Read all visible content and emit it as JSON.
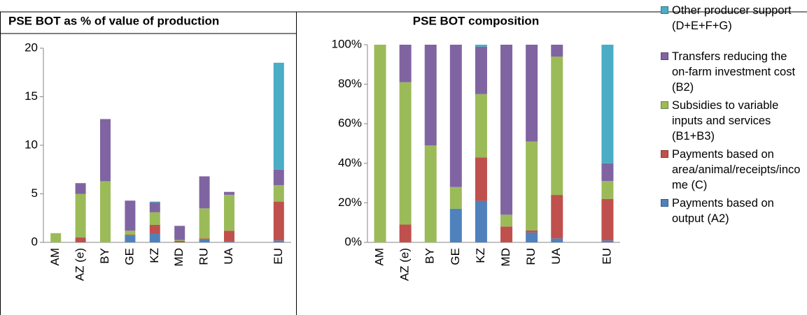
{
  "chart_data": [
    {
      "type": "stacked_bar",
      "title": "PSE BOT as % of value of production",
      "categories": [
        "AM",
        "AZ (e)",
        "BY",
        "GE",
        "KZ",
        "MD",
        "RU",
        "UA",
        null,
        "EU"
      ],
      "ylim": [
        0,
        20
      ],
      "yticks": [
        0,
        5,
        10,
        15,
        20
      ],
      "grid": false,
      "series": [
        {
          "name": "Payments based on output (A2)",
          "color": "#4f81bd",
          "values": [
            0,
            0,
            0,
            0.7,
            0.9,
            0,
            0.3,
            0.1,
            null,
            0.2
          ]
        },
        {
          "name": "Payments based on area/animal/receipts/income (C)",
          "color": "#c0504d",
          "values": [
            0,
            0.5,
            0,
            0.1,
            0.9,
            0.15,
            0.1,
            1.1,
            null,
            4.0
          ]
        },
        {
          "name": "Subsidies to variable inputs and services (B1+B3)",
          "color": "#9bbb59",
          "values": [
            0.95,
            4.5,
            6.3,
            0.4,
            1.3,
            0.1,
            3.1,
            3.7,
            null,
            1.7
          ]
        },
        {
          "name": "Transfers reducing the on-farm investment cost (B2)",
          "color": "#8064a2",
          "values": [
            0,
            1.1,
            6.4,
            3.1,
            1.0,
            1.45,
            3.3,
            0.3,
            null,
            1.6
          ]
        },
        {
          "name": "Other producer support (D+E+F+G)",
          "color": "#4bacc6",
          "values": [
            0,
            0,
            0,
            0,
            0.1,
            0,
            0,
            0,
            null,
            11.0
          ]
        }
      ]
    },
    {
      "type": "stacked_bar",
      "title": "PSE BOT composition",
      "categories": [
        "AM",
        "AZ (e)",
        "BY",
        "GE",
        "KZ",
        "MD",
        "RU",
        "UA",
        null,
        "EU"
      ],
      "ylim": [
        0,
        100
      ],
      "yticks": [
        {
          "value": 0,
          "label": "0%"
        },
        {
          "value": 20,
          "label": "20%"
        },
        {
          "value": 40,
          "label": "40%"
        },
        {
          "value": 60,
          "label": "60%"
        },
        {
          "value": 80,
          "label": "80%"
        },
        {
          "value": 100,
          "label": "100%"
        }
      ],
      "grid": false,
      "legend": "right",
      "series": [
        {
          "name": "Payments based on output (A2)",
          "color": "#4f81bd",
          "values": [
            0,
            0,
            0,
            17,
            21,
            0,
            5,
            2,
            null,
            1
          ]
        },
        {
          "name": "Payments based on area/animal/receipts/income (C)",
          "color": "#c0504d",
          "values": [
            0,
            9,
            0,
            0,
            22,
            8,
            1,
            22,
            null,
            21
          ]
        },
        {
          "name": "Subsidies to variable inputs and services (B1+B3)",
          "color": "#9bbb59",
          "values": [
            100,
            72,
            49,
            11,
            32,
            6,
            45,
            70,
            null,
            9
          ]
        },
        {
          "name": "Transfers reducing the on-farm investment cost (B2)",
          "color": "#8064a2",
          "values": [
            0,
            19,
            51,
            72,
            24,
            86,
            49,
            6,
            null,
            9
          ]
        },
        {
          "name": "Other producer support (D+E+F+G)",
          "color": "#4bacc6",
          "values": [
            0,
            0,
            0,
            0,
            1,
            0,
            0,
            0,
            null,
            60
          ]
        }
      ]
    }
  ]
}
